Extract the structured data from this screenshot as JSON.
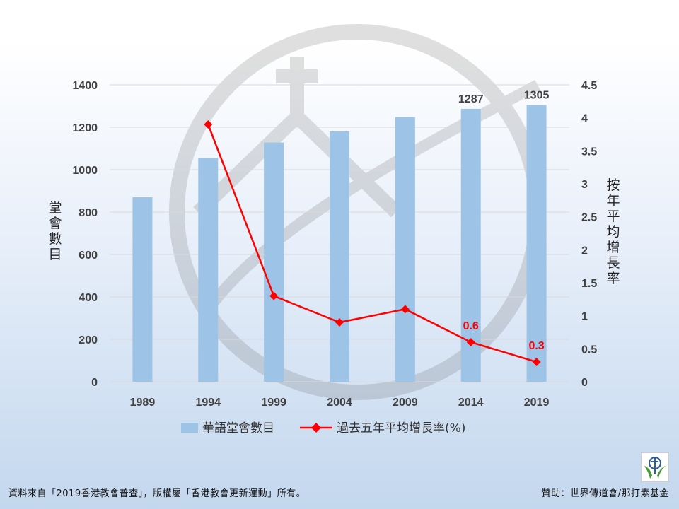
{
  "chart_data": {
    "type": "bar",
    "categories": [
      "1989",
      "1994",
      "1999",
      "2004",
      "2009",
      "2014",
      "2019"
    ],
    "series": [
      {
        "name": "華語堂會數目",
        "type": "bar",
        "axis": "left",
        "color": "#9dc3e6",
        "values": [
          870,
          1055,
          1128,
          1180,
          1248,
          1287,
          1305
        ],
        "data_labels": [
          null,
          null,
          null,
          null,
          null,
          "1287",
          "1305"
        ]
      },
      {
        "name": "過去五年平均增長率(%)",
        "type": "line",
        "axis": "right",
        "color": "#ff0000",
        "marker": "diamond",
        "values": [
          null,
          3.9,
          1.3,
          0.9,
          1.1,
          0.6,
          0.3
        ],
        "data_labels": [
          null,
          null,
          null,
          null,
          null,
          "0.6",
          "0.3"
        ]
      }
    ],
    "ylabel": "堂會數目",
    "ylabel_right": "按年平均增長率",
    "ylim": [
      0,
      1400
    ],
    "ylim_right": [
      0,
      4.5
    ],
    "yticks": [
      0,
      200,
      400,
      600,
      800,
      1000,
      1200,
      1400
    ],
    "yticks_right": [
      0,
      0.5,
      1,
      1.5,
      2,
      2.5,
      3,
      3.5,
      4,
      4.5
    ],
    "grid": true,
    "legend": "bottom"
  },
  "footer": {
    "source": "資料來自「2019香港教會普查」，版權屬「香港教會更新運動」所有。",
    "sponsor": "贊助：世界傳道會/那打素基金"
  },
  "colors": {
    "bar": "#9dc3e6",
    "line": "#ff0000",
    "grid": "#d9d9d9"
  }
}
